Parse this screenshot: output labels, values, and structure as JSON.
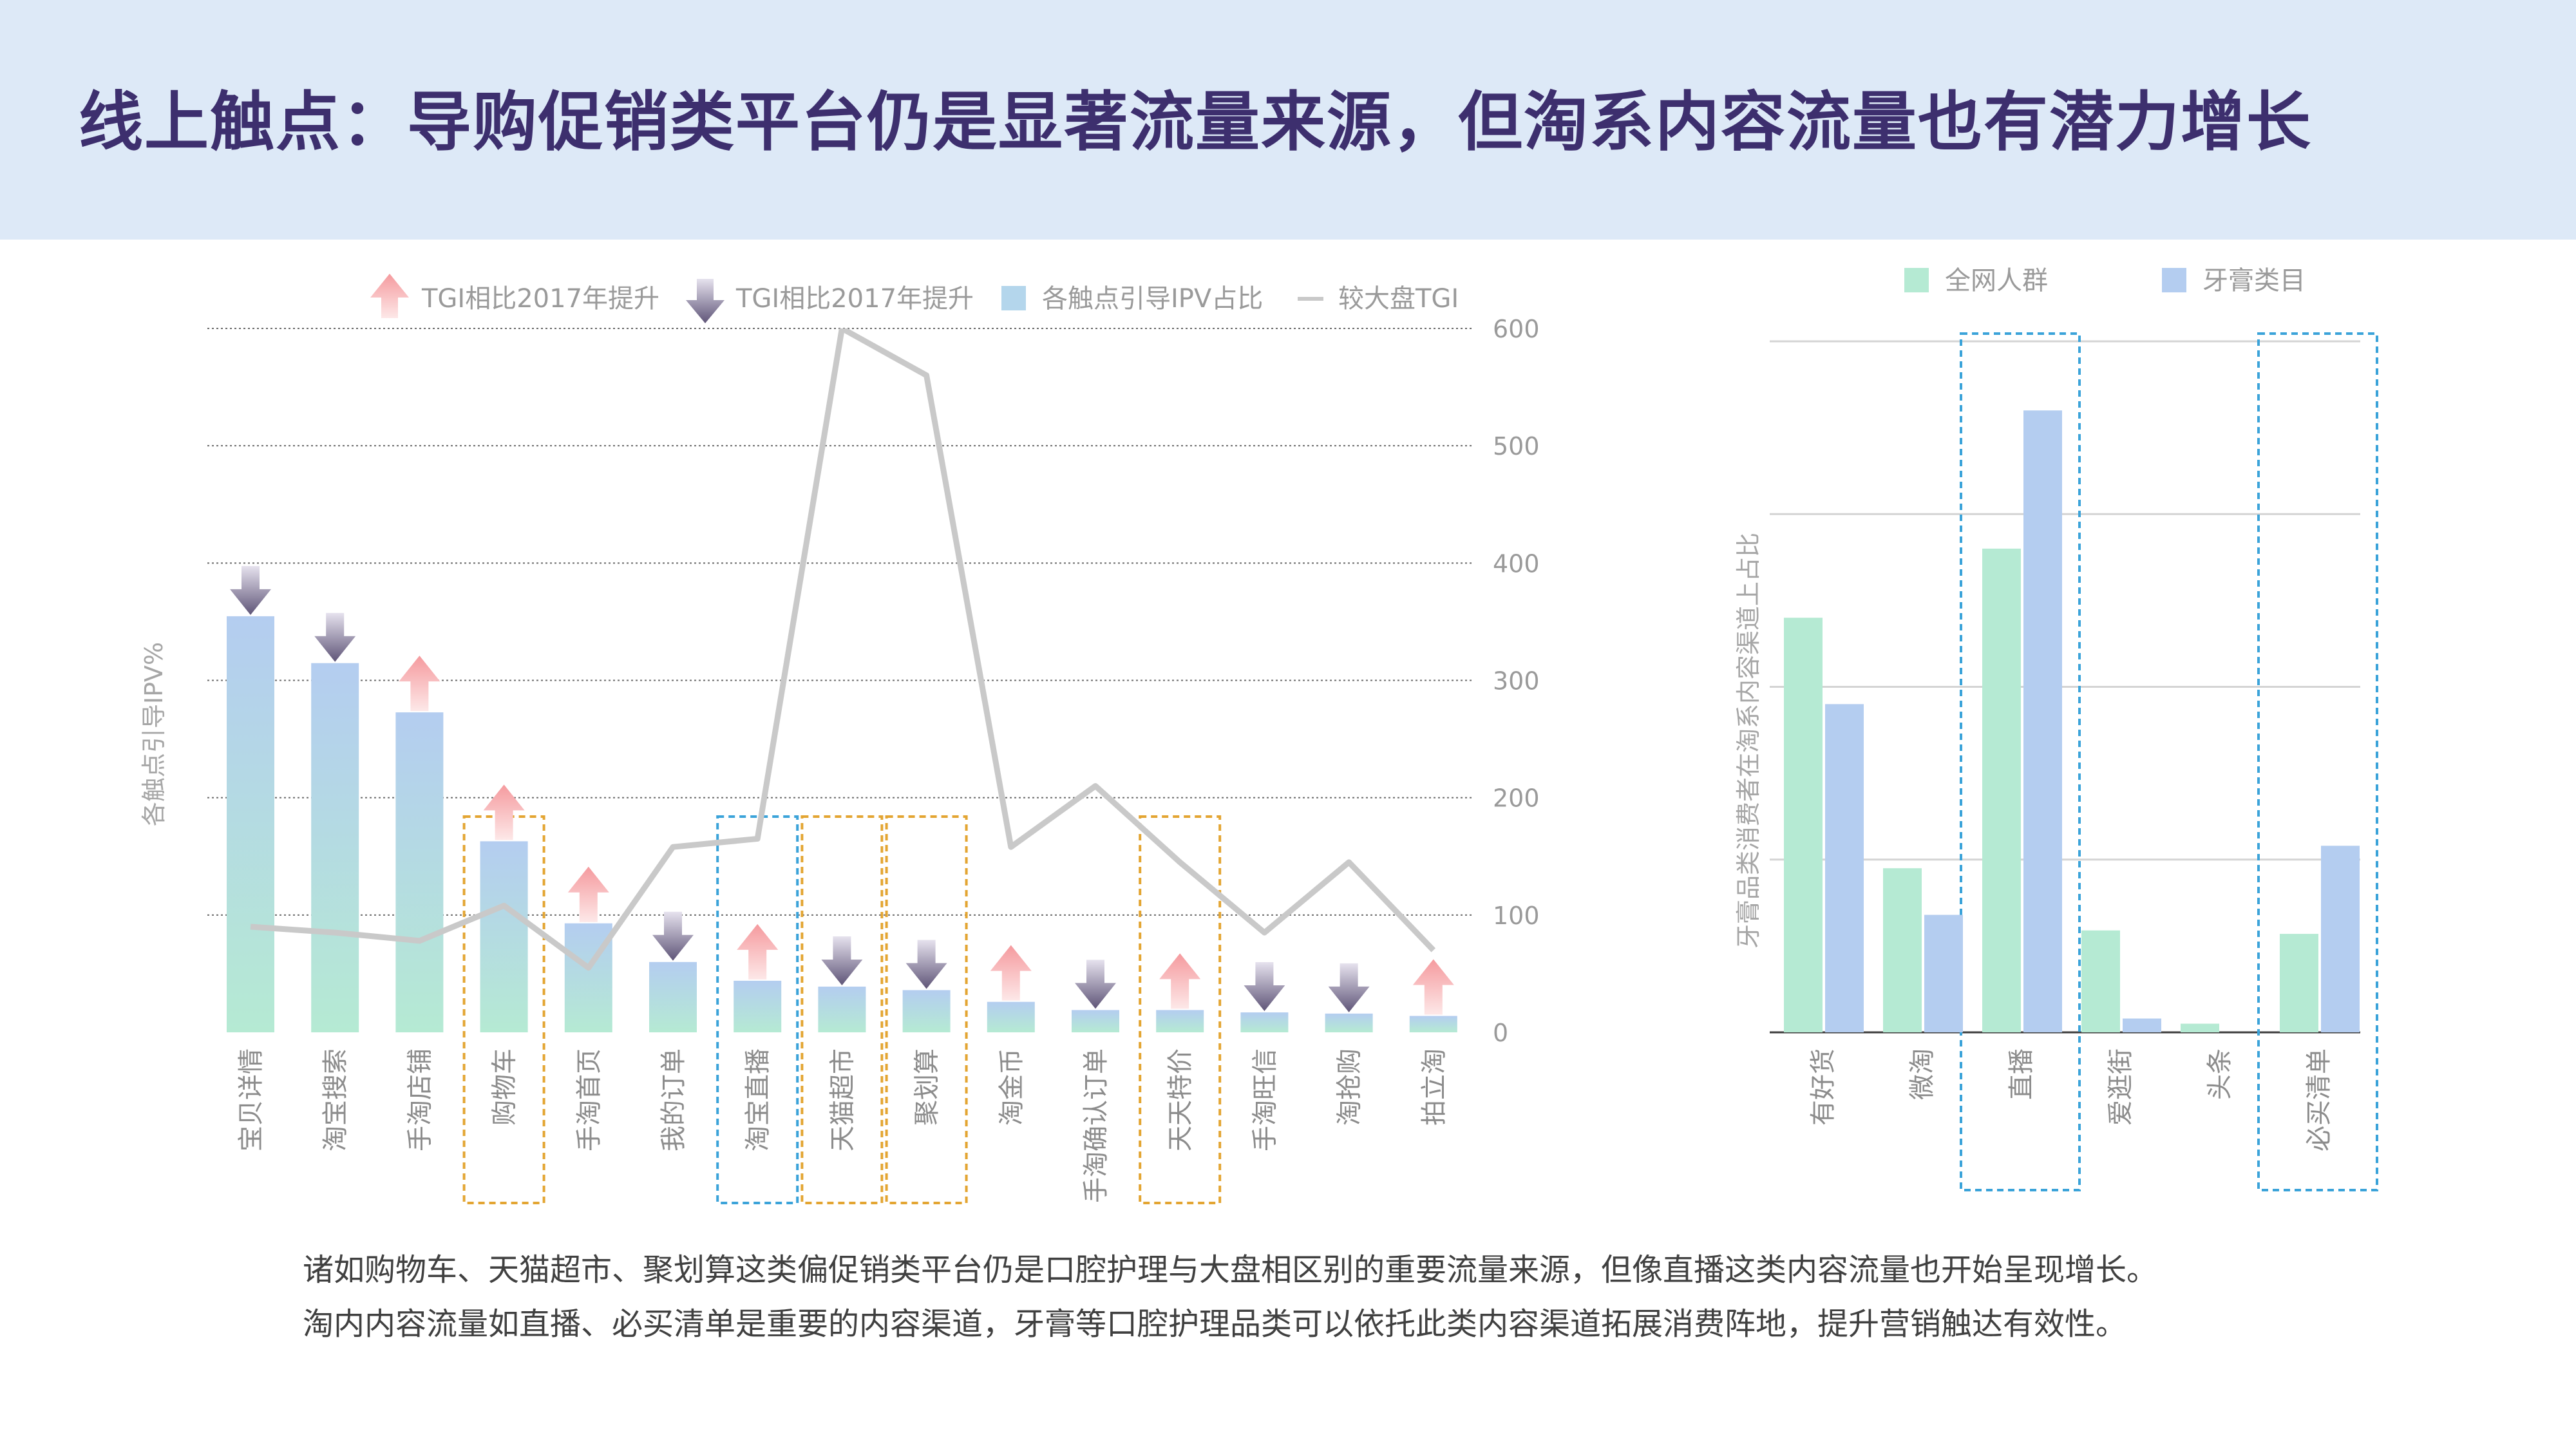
{
  "title": "线上触点：导购促销类平台仍是显著流量来源，但淘系内容流量也有潜力增长",
  "summary": [
    "诸如购物车、天猫超市、聚划算这类偏促销类平台仍是口腔护理与大盘相区别的重要流量来源，但像直播这类内容流量也开始呈现增长。",
    "淘内内容流量如直播、必买清单是重要的内容渠道，牙膏等口腔护理品类可以依托此类内容渠道拓展消费阵地，提升营销触达有效性。"
  ],
  "colors": {
    "header_bg": "#dde9f7",
    "title": "#3d2f6e",
    "bar_top": "#b4cdf0",
    "bar_bottom": "#b5ead3",
    "arrow_up": "#f6a3a5",
    "arrow_down": "#6f6586",
    "tgi_line": "#c9c9c9",
    "highlight_orange": "#e3a532",
    "highlight_blue": "#3ba3d9",
    "green_series": "#b5ead3",
    "blue_series": "#b4cdf0"
  },
  "chart_data": [
    {
      "type": "bar",
      "legend": {
        "up": "TGI相比2017年提升",
        "down": "TGI相比2017年提升",
        "bar": "各触点引导IPV占比",
        "line": "较大盘TGI"
      },
      "ylabel": "各触点引导IPV%",
      "y2_ticks": [
        "600",
        "500",
        "400",
        "300",
        "200",
        "100",
        "0"
      ],
      "y2lim": [
        0,
        600
      ],
      "grid": true,
      "categories": [
        "宝贝详情",
        "淘宝搜索",
        "手淘店铺",
        "购物车",
        "手淘首页",
        "我的订单",
        "淘宝直播",
        "天猫超市",
        "聚划算",
        "淘金币",
        "手淘确认订单",
        "天天特价",
        "手淘旺信",
        "淘抢购",
        "拍立淘"
      ],
      "series": [
        {
          "name": "各触点引导IPV占比",
          "type": "bar",
          "values": [
            35.5,
            31.5,
            27.3,
            16.3,
            9.3,
            6.0,
            4.4,
            3.9,
            3.6,
            2.6,
            1.9,
            1.9,
            1.7,
            1.6,
            1.4
          ]
        },
        {
          "name": "较大盘TGI",
          "type": "line",
          "values": [
            90,
            85,
            78,
            108,
            55,
            158,
            165,
            600,
            560,
            158,
            210,
            145,
            85,
            145,
            70
          ]
        }
      ],
      "trend_vs_2017": [
        "down",
        "down",
        "up",
        "up",
        "up",
        "down",
        "up",
        "down",
        "down",
        "up",
        "down",
        "up",
        "down",
        "down",
        "up"
      ],
      "highlight_orange": [
        "购物车",
        "天猫超市",
        "聚划算",
        "天天特价"
      ],
      "highlight_blue": [
        "淘宝直播"
      ]
    },
    {
      "type": "bar",
      "ylabel": "牙膏品类消费者在淘系内容渠道上占比",
      "legend_position": "top",
      "grid": true,
      "categories": [
        "有好货",
        "微淘",
        "直播",
        "爱逛街",
        "头条",
        "必买清单"
      ],
      "series": [
        {
          "name": "全网人群",
          "values": [
            24,
            9.5,
            28,
            5.9,
            0.5,
            5.7
          ]
        },
        {
          "name": "牙膏类目",
          "values": [
            19,
            6.8,
            36,
            0.8,
            0,
            10.8
          ]
        }
      ],
      "ylim": [
        0,
        40
      ],
      "highlight_blue": [
        "直播",
        "必买清单"
      ]
    }
  ]
}
